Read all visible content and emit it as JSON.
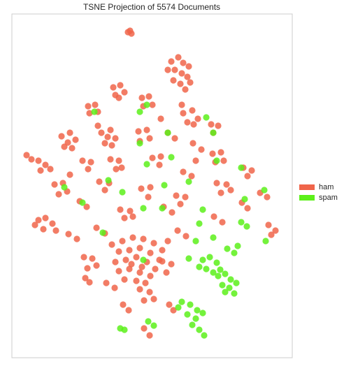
{
  "chart_data": {
    "type": "scatter",
    "title": "TSNE Projection of 5574 Documents",
    "xlim": [
      0,
      401
    ],
    "ylim": [
      0,
      492
    ],
    "grid": false,
    "legend": "right",
    "series": [
      {
        "name": "ham",
        "color": "#f0654a",
        "x": [
          166,
          171,
          169,
          228,
          238,
          245,
          253,
          233,
          243,
          251,
          231,
          241,
          255,
          223,
          248,
          145,
          155,
          161,
          148,
          153,
          109,
          119,
          123,
          111,
          186,
          196,
          201,
          188,
          245,
          258,
          266,
          251,
          260,
          285,
          295,
          288,
          71,
          83,
          91,
          75,
          86,
          80,
          128,
          141,
          148,
          133,
          143,
          137,
          181,
          193,
          197,
          183,
          223,
          233,
          259,
          271,
          287,
          299,
          303,
          291,
          28,
          38,
          48,
          55,
          41,
          21,
          101,
          113,
          109,
          141,
          153,
          149,
          157,
          201,
          213,
          211,
          245,
          257,
          331,
          343,
          337,
          61,
          73,
          79,
          67,
          125,
          139,
          133,
          185,
          198,
          195,
          235,
          248,
          241,
          293,
          307,
          313,
          299,
          355,
          365,
          38,
          48,
          58,
          45,
          63,
          33,
          97,
          107,
          155,
          169,
          161,
          173,
          217,
          229,
          289,
          301,
          329,
          337,
          367,
          377,
          371,
          81,
          93,
          121,
          133,
          158,
          173,
          188,
          203,
          215,
          153,
          168,
          183,
          198,
          211,
          148,
          163,
          178,
          193,
          205,
          153,
          168,
          183,
          198,
          161,
          178,
          191,
          143,
          223,
          171,
          186,
          103,
          115,
          121,
          108,
          237,
          249,
          215,
          228,
          221,
          135,
          147,
          183,
          197,
          203,
          189,
          225,
          231,
          189,
          197,
          105,
          111,
          159,
          167,
          123,
          243,
          213,
          83,
          263
        ],
        "values": [
          466,
          464,
          468,
          424,
          430,
          422,
          417,
          412,
          407,
          402,
          397,
          392,
          394,
          412,
          384,
          387,
          390,
          380,
          376,
          372,
          360,
          362,
          352,
          350,
          372,
          374,
          362,
          360,
          350,
          354,
          342,
          337,
          334,
          334,
          332,
          322,
          317,
          322,
          312,
          302,
          300,
          308,
          322,
          326,
          314,
          307,
          304,
          316,
          324,
          326,
          314,
          310,
          322,
          314,
          307,
          298,
          292,
          294,
          282,
          280,
          284,
          282,
          276,
          270,
          268,
          290,
          282,
          280,
          270,
          284,
          282,
          270,
          272,
          286,
          288,
          276,
          266,
          260,
          272,
          268,
          260,
          248,
          250,
          238,
          234,
          252,
          250,
          240,
          242,
          244,
          230,
          232,
          230,
          220,
          250,
          248,
          240,
          236,
          236,
          230,
          197,
          200,
          192,
          184,
          182,
          190,
          224,
          216,
          212,
          210,
          200,
          202,
          216,
          208,
          202,
          194,
          222,
          214,
          190,
          182,
          176,
          177,
          170,
          186,
          178,
          167,
          172,
          170,
          164,
          154,
          152,
          154,
          157,
          150,
          140,
          137,
          140,
          144,
          137,
          127,
          124,
          127,
          122,
          117,
          112,
          110,
          107,
          162,
          167,
          134,
          130,
          144,
          142,
          132,
          128,
          182,
          174,
          138,
          134,
          122,
          107,
          100,
          98,
          94,
          84,
          82,
          76,
          68,
          42,
          32,
          114,
          108,
          76,
          68,
          332,
          362,
          342,
          262,
          282
        ]
      },
      {
        "name": "spam",
        "color": "#5cf01a",
        "x": [
          273,
          283,
          293,
          278,
          288,
          268,
          298,
          295,
          305,
          313,
          301,
          311,
          321,
          318,
          305,
          308,
          318,
          323,
          243,
          255,
          265,
          251,
          263,
          273,
          258,
          238,
          268,
          275,
          195,
          203,
          155,
          161,
          328,
          336,
          118,
          183,
          223,
          288,
          183,
          228,
          293,
          193,
          75,
          138,
          158,
          253,
          218,
          328,
          361,
          101,
          188,
          215,
          268,
          288,
          363,
          130,
          188,
          273,
          333,
          253,
          263,
          193,
          278
        ],
        "values": [
          140,
          144,
          136,
          127,
          122,
          130,
          126,
          117,
          120,
          112,
          104,
          100,
          107,
          92,
          94,
          156,
          150,
          160,
          80,
          76,
          68,
          62,
          56,
          64,
          47,
          72,
          40,
          32,
          52,
          46,
          42,
          40,
          194,
          188,
          352,
          352,
          322,
          322,
          307,
          287,
          282,
          277,
          244,
          254,
          237,
          252,
          247,
          272,
          240,
          222,
          214,
          214,
          192,
          172,
          167,
          179,
          140,
          212,
          227,
          142,
          167,
          362,
          344
        ]
      }
    ]
  }
}
